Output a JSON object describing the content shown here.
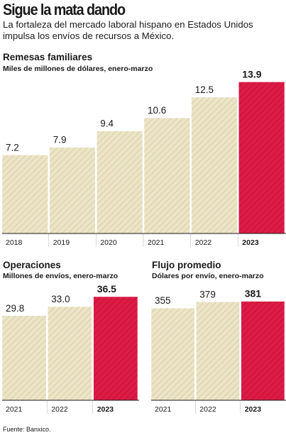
{
  "header": {
    "title": "Sigue la mata dando",
    "subtitle": "La fortaleza del mercado laboral hispano en Estados Unidos impulsa los envíos de recursos a México."
  },
  "colors": {
    "bar": "#ece4c6",
    "stripe": "#d3c9a2",
    "highlight": "#dd1b45",
    "highlight_stripe": "#b8123a",
    "axis": "#1a1a1a"
  },
  "source": "Fuente: Banxico.",
  "chart_data": [
    {
      "type": "bar",
      "title": "Remesas familiares",
      "subtitle": "Miles de millones de dólares, enero-marzo",
      "categories": [
        "2018",
        "2019",
        "2020",
        "2021",
        "2022",
        "2023"
      ],
      "values": [
        7.2,
        7.9,
        9.4,
        10.6,
        12.5,
        13.9
      ],
      "labels": [
        "7.2",
        "7.9",
        "9.4",
        "10.6",
        "12.5",
        "13.9"
      ],
      "highlight": "2023",
      "ylim": [
        0,
        14.25
      ]
    },
    {
      "type": "bar",
      "title": "Operaciones",
      "subtitle": "Millones de envíos, enero-marzo",
      "categories": [
        "2021",
        "2022",
        "2023"
      ],
      "values": [
        29.8,
        33.0,
        36.5
      ],
      "labels": [
        "29.8",
        "33.0",
        "36.5"
      ],
      "highlight": "2023",
      "ylim": [
        0,
        37.5
      ]
    },
    {
      "type": "bar",
      "title": "Flujo promedio",
      "subtitle": "Dólares por envío, enero-marzo",
      "categories": [
        "2021",
        "2022",
        "2023"
      ],
      "values": [
        355,
        379,
        381
      ],
      "labels": [
        "355",
        "379",
        "381"
      ],
      "highlight": "2023",
      "ylim": [
        0,
        410
      ]
    }
  ]
}
